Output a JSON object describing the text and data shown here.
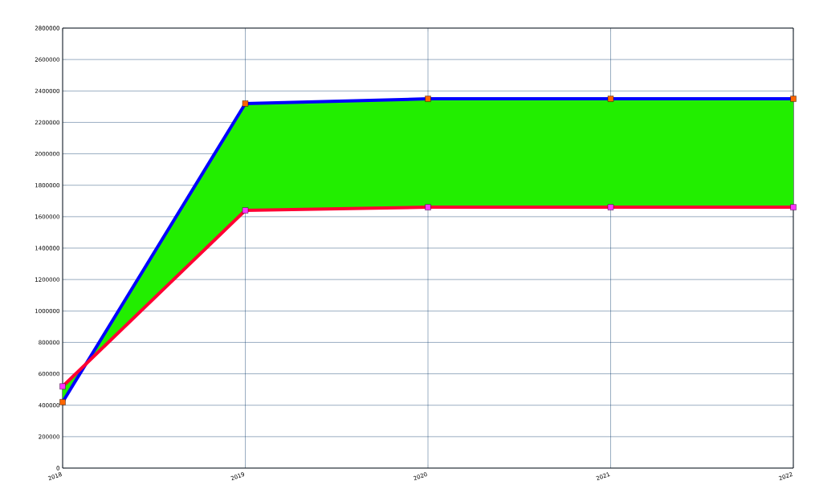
{
  "chart_data": {
    "type": "line",
    "categories": [
      "2018",
      "2019",
      "2020",
      "2021",
      "2022"
    ],
    "series": [
      {
        "color": "#0000ff",
        "colors": [
          "#ff6600",
          "#ff6600",
          "#ff6600",
          "#ff6600",
          "#ff6600"
        ],
        "values": [
          420000,
          2320000,
          2350000,
          2350000,
          2350000
        ],
        "lower": [
          520000,
          1640000,
          1660000,
          1660000,
          1660000
        ],
        "upper": [
          420000,
          2320000,
          2350000,
          2350000,
          2350000
        ]
      },
      {
        "color": "#ff0033",
        "colors": [
          "#ff33ff",
          "#ff33ff",
          "#ff33ff",
          "#ff33ff",
          "#ff33ff"
        ],
        "values": [
          520000,
          1640000,
          1660000,
          1660000,
          1660000
        ]
      }
    ],
    "ylim": [
      0,
      2800000
    ],
    "yticks": [
      0,
      200000,
      400000,
      600000,
      800000,
      1000000,
      1200000,
      1400000,
      1600000,
      1800000,
      2000000,
      2200000,
      2400000,
      2600000,
      2800000
    ],
    "grid": true,
    "marker": "square",
    "line_style": "solid"
  }
}
